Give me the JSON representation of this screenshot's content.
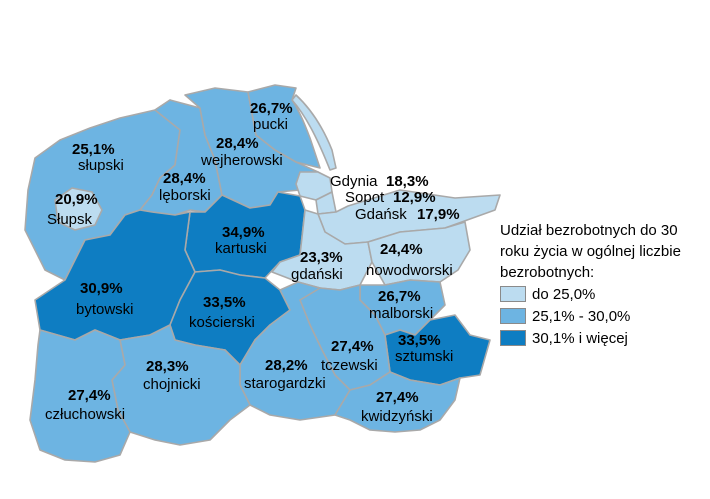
{
  "legend": {
    "title": "Udział bezrobotnych do 30 roku życia w ogólnej liczbie bezrobotnych:",
    "items": [
      {
        "label": "do 25,0%",
        "color": "#bcdcf0"
      },
      {
        "label": "25,1% - 30,0%",
        "color": "#6db4e2"
      },
      {
        "label": "30,1% i więcej",
        "color": "#0e7dc2"
      }
    ]
  },
  "regions": {
    "pucki": {
      "name": "pucki",
      "value": "26,7%"
    },
    "wejherowski": {
      "name": "wejherowski",
      "value": "28,4%"
    },
    "slupski": {
      "name": "słupski",
      "value": "25,1%"
    },
    "leborski": {
      "name": "lęborski",
      "value": "28,4%"
    },
    "slupsk": {
      "name": "Słupsk",
      "value": "20,9%"
    },
    "gdynia": {
      "name": "Gdynia",
      "value": "18,3%"
    },
    "sopot": {
      "name": "Sopot",
      "value": "12,9%"
    },
    "gdansk": {
      "name": "Gdańsk",
      "value": "17,9%"
    },
    "kartuski": {
      "name": "kartuski",
      "value": "34,9%"
    },
    "gdanski": {
      "name": "gdański",
      "value": "23,3%"
    },
    "nowodworski": {
      "name": "nowodworski",
      "value": "24,4%"
    },
    "bytowski": {
      "name": "bytowski",
      "value": "30,9%"
    },
    "koscierski": {
      "name": "kościerski",
      "value": "33,5%"
    },
    "malborski": {
      "name": "malborski",
      "value": "26,7%"
    },
    "sztumski": {
      "name": "sztumski",
      "value": "33,5%"
    },
    "tczewski": {
      "name": "tczewski",
      "value": "27,4%"
    },
    "chojnicki": {
      "name": "chojnicki",
      "value": "28,3%"
    },
    "starogardzki": {
      "name": "starogardzki",
      "value": "28,2%"
    },
    "czluchowski": {
      "name": "człuchowski",
      "value": "27,4%"
    },
    "kwidzynski": {
      "name": "kwidzyński",
      "value": "27,4%"
    }
  }
}
